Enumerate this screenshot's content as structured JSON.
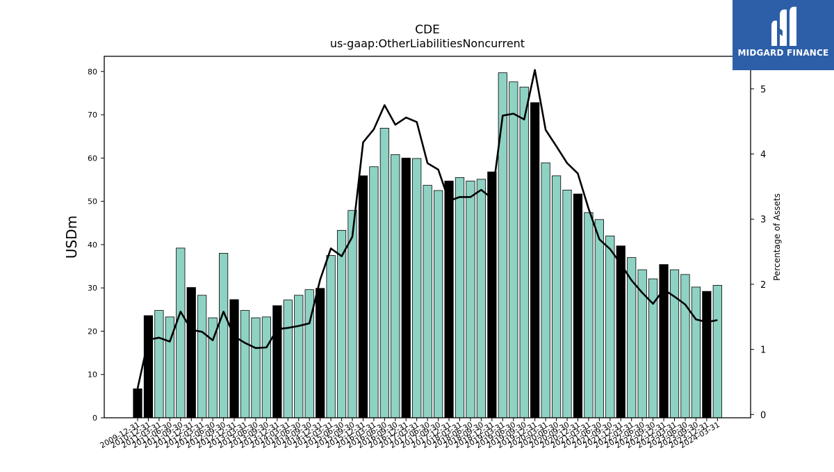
{
  "chart_data": {
    "type": "bar",
    "title": "CDE",
    "subtitle": "us-gaap:OtherLiabilitiesNoncurrent",
    "ylabel": "USDm",
    "y2label": "Percentage of Assets",
    "ylim": [
      0,
      83.5
    ],
    "y2lim": [
      -0.05,
      5.5
    ],
    "yticks": [
      0,
      10,
      20,
      30,
      40,
      50,
      60,
      70,
      80
    ],
    "y2ticks": [
      0,
      1,
      2,
      3,
      4,
      5
    ],
    "categories": [
      "2009-12-31",
      "2010-12-31",
      "2011-03-31",
      "2011-06-30",
      "2011-09-30",
      "2011-12-31",
      "2012-03-31",
      "2012-06-30",
      "2012-09-30",
      "2012-12-31",
      "2013-03-31",
      "2013-06-30",
      "2013-09-30",
      "2013-12-31",
      "2014-03-31",
      "2014-06-30",
      "2014-09-30",
      "2014-12-31",
      "2015-03-31",
      "2015-06-30",
      "2015-09-30",
      "2015-12-31",
      "2016-03-31",
      "2016-06-30",
      "2016-09-30",
      "2016-12-31",
      "2017-03-31",
      "2017-06-30",
      "2017-09-30",
      "2017-12-31",
      "2018-03-31",
      "2018-06-30",
      "2018-09-30",
      "2018-12-31",
      "2019-03-31",
      "2019-06-30",
      "2019-09-30",
      "2019-12-31",
      "2020-03-31",
      "2020-06-30",
      "2020-09-30",
      "2020-12-31",
      "2021-03-31",
      "2021-06-30",
      "2021-09-30",
      "2021-12-31",
      "2022-03-31",
      "2022-06-30",
      "2022-09-30",
      "2022-12-31",
      "2023-03-31",
      "2023-06-30",
      "2023-09-30",
      "2023-12-31",
      "2024-03-31"
    ],
    "values": [
      6.7,
      23.6,
      24.8,
      23.3,
      39.2,
      30.1,
      28.3,
      23.1,
      38.0,
      27.3,
      24.8,
      23.1,
      23.3,
      25.9,
      27.2,
      28.3,
      29.6,
      29.9,
      37.5,
      43.3,
      47.9,
      55.9,
      58.0,
      66.9,
      60.8,
      60.0,
      59.9,
      53.7,
      52.5,
      54.7,
      55.5,
      54.7,
      55.1,
      56.8,
      79.7,
      77.6,
      76.4,
      72.8,
      58.9,
      55.9,
      52.6,
      51.7,
      47.4,
      45.8,
      42.0,
      39.7,
      37.0,
      34.2,
      32.1,
      35.4,
      34.2,
      33.1,
      30.2,
      29.2,
      30.6
    ],
    "annual_flags": [
      1,
      1,
      0,
      0,
      0,
      1,
      0,
      0,
      0,
      1,
      0,
      0,
      0,
      1,
      0,
      0,
      0,
      1,
      0,
      0,
      0,
      1,
      0,
      0,
      0,
      1,
      0,
      0,
      0,
      1,
      0,
      0,
      0,
      1,
      0,
      0,
      0,
      1,
      0,
      0,
      0,
      1,
      0,
      0,
      0,
      1,
      0,
      0,
      0,
      1,
      0,
      0,
      0,
      1,
      0
    ],
    "line_values": [
      0.4,
      1.15,
      1.18,
      1.12,
      1.58,
      1.3,
      1.27,
      1.14,
      1.58,
      1.2,
      1.1,
      1.02,
      1.03,
      1.31,
      1.33,
      1.36,
      1.4,
      2.07,
      2.55,
      2.43,
      2.73,
      4.18,
      4.38,
      4.75,
      4.45,
      4.56,
      4.49,
      3.86,
      3.76,
      3.28,
      3.34,
      3.34,
      3.45,
      3.32,
      4.59,
      4.62,
      4.53,
      5.29,
      4.37,
      4.12,
      3.86,
      3.7,
      3.16,
      2.69,
      2.54,
      2.31,
      2.06,
      1.87,
      1.7,
      1.92,
      1.81,
      1.69,
      1.46,
      1.42,
      1.45
    ],
    "colors": {
      "bar": "#8ed2c4",
      "bar_annual": "#000000",
      "line": "#000000"
    }
  },
  "brand": {
    "name": "MIDGARD FINANCE",
    "color": "#2d5fa8"
  }
}
